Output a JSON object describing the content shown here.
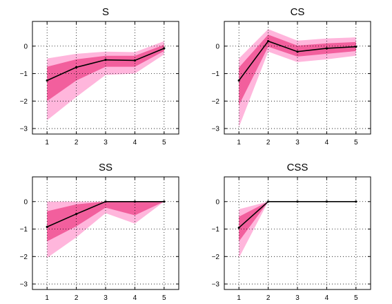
{
  "chart_data": [
    {
      "type": "area",
      "title": "S",
      "x": [
        1,
        2,
        3,
        4,
        5
      ],
      "xticks": [
        1,
        2,
        3,
        4,
        5
      ],
      "yticks": [
        0,
        -1,
        -2,
        -3
      ],
      "xlim": [
        0.5,
        5.5
      ],
      "ylim": [
        -3.2,
        0.9
      ],
      "grid": true,
      "series": [
        {
          "values": [
            -1.25,
            -0.77,
            -0.5,
            -0.52,
            -0.08
          ]
        }
      ],
      "bands": [
        {
          "level": "outer",
          "lower": [
            -2.7,
            -1.85,
            -1.05,
            -1.0,
            -0.3
          ],
          "upper": [
            -0.45,
            -0.28,
            -0.2,
            -0.22,
            0.18
          ]
        },
        {
          "level": "inner",
          "lower": [
            -2.0,
            -1.25,
            -0.75,
            -0.75,
            -0.18
          ],
          "upper": [
            -0.75,
            -0.48,
            -0.35,
            -0.35,
            0.05
          ]
        }
      ]
    },
    {
      "type": "area",
      "title": "CS",
      "x": [
        1,
        2,
        3,
        4,
        5
      ],
      "xticks": [
        1,
        2,
        3,
        4,
        5
      ],
      "yticks": [
        0,
        -1,
        -2,
        -3
      ],
      "xlim": [
        0.5,
        5.5
      ],
      "ylim": [
        -3.2,
        0.9
      ],
      "grid": true,
      "series": [
        {
          "values": [
            -1.25,
            0.18,
            -0.2,
            -0.08,
            -0.02
          ]
        }
      ],
      "bands": [
        {
          "level": "outer",
          "lower": [
            -2.95,
            -0.2,
            -0.58,
            -0.48,
            -0.35
          ],
          "upper": [
            -0.45,
            0.62,
            0.2,
            0.28,
            0.32
          ]
        },
        {
          "level": "inner",
          "lower": [
            -2.15,
            -0.02,
            -0.38,
            -0.28,
            -0.18
          ],
          "upper": [
            -0.78,
            0.42,
            0.02,
            0.1,
            0.15
          ]
        }
      ]
    },
    {
      "type": "area",
      "title": "SS",
      "x": [
        1,
        2,
        3,
        4,
        5
      ],
      "xticks": [
        1,
        2,
        3,
        4,
        5
      ],
      "yticks": [
        0,
        -1,
        -2,
        -3
      ],
      "xlim": [
        0.5,
        5.5
      ],
      "ylim": [
        -3.2,
        0.9
      ],
      "grid": true,
      "series": [
        {
          "values": [
            -0.92,
            -0.45,
            0.0,
            0.0,
            0.0
          ]
        }
      ],
      "bands": [
        {
          "level": "outer",
          "lower": [
            -2.05,
            -1.3,
            -0.42,
            -0.8,
            0.0
          ],
          "upper": [
            0.0,
            0.0,
            0.0,
            0.0,
            0.0
          ]
        },
        {
          "level": "inner",
          "lower": [
            -1.45,
            -0.9,
            -0.22,
            -0.5,
            0.0
          ],
          "upper": [
            -0.35,
            -0.1,
            0.0,
            0.0,
            0.0
          ]
        }
      ]
    },
    {
      "type": "area",
      "title": "CSS",
      "x": [
        1,
        2,
        3,
        4,
        5
      ],
      "xticks": [
        1,
        2,
        3,
        4,
        5
      ],
      "yticks": [
        0,
        -1,
        -2,
        -3
      ],
      "xlim": [
        0.5,
        5.5
      ],
      "ylim": [
        -3.2,
        0.9
      ],
      "grid": true,
      "series": [
        {
          "values": [
            -0.95,
            0.0,
            0.0,
            0.0,
            0.0
          ]
        }
      ],
      "bands": [
        {
          "level": "outer",
          "lower": [
            -2.05,
            0.0,
            0.0,
            0.0,
            0.0
          ],
          "upper": [
            -0.28,
            0.0,
            0.0,
            0.0,
            0.0
          ]
        },
        {
          "level": "inner",
          "lower": [
            -1.45,
            0.0,
            0.0,
            0.0,
            0.0
          ],
          "upper": [
            -0.55,
            0.0,
            0.0,
            0.0,
            0.0
          ]
        }
      ]
    }
  ],
  "colors": {
    "outer_band": "#ffb6dc",
    "inner_band": "#f25f9d",
    "line": "#000000"
  }
}
